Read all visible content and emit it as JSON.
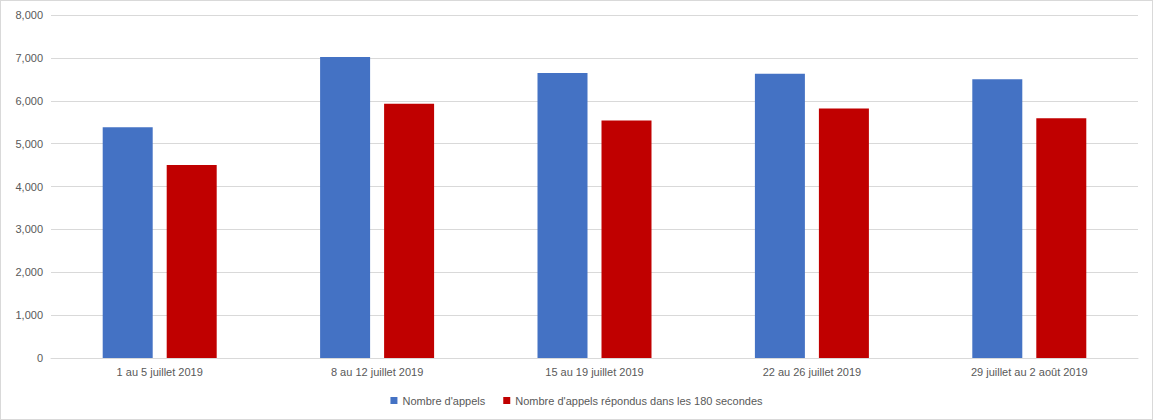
{
  "chart_data": {
    "type": "bar",
    "categories": [
      "1 au 5 juillet 2019",
      "8 au 12 juillet 2019",
      "15 au 19 juillet 2019",
      "22 au 26 juillet 2019",
      "29 juillet au 2 août 2019"
    ],
    "series": [
      {
        "name": "Nombre d'appels",
        "color": "#4472c4",
        "values": [
          5380,
          7020,
          6650,
          6630,
          6500
        ]
      },
      {
        "name": "Nombre d'appels répondus dans les 180 secondes",
        "color": "#c00000",
        "values": [
          4500,
          5930,
          5540,
          5820,
          5590
        ]
      }
    ],
    "ylim": [
      0,
      8000
    ],
    "yticks": [
      0,
      {
        "value": 1000,
        "label": "1,000"
      },
      {
        "value": 2000,
        "label": "2,000"
      },
      {
        "value": 3000,
        "label": "3,000"
      },
      {
        "value": 4000,
        "label": "4,000"
      },
      {
        "value": 5000,
        "label": "5,000"
      },
      {
        "value": 6000,
        "label": "6,000"
      },
      {
        "value": 7000,
        "label": "7,000"
      },
      {
        "value": 8000,
        "label": "8,000"
      }
    ],
    "grid": true,
    "legend": "bottom"
  }
}
